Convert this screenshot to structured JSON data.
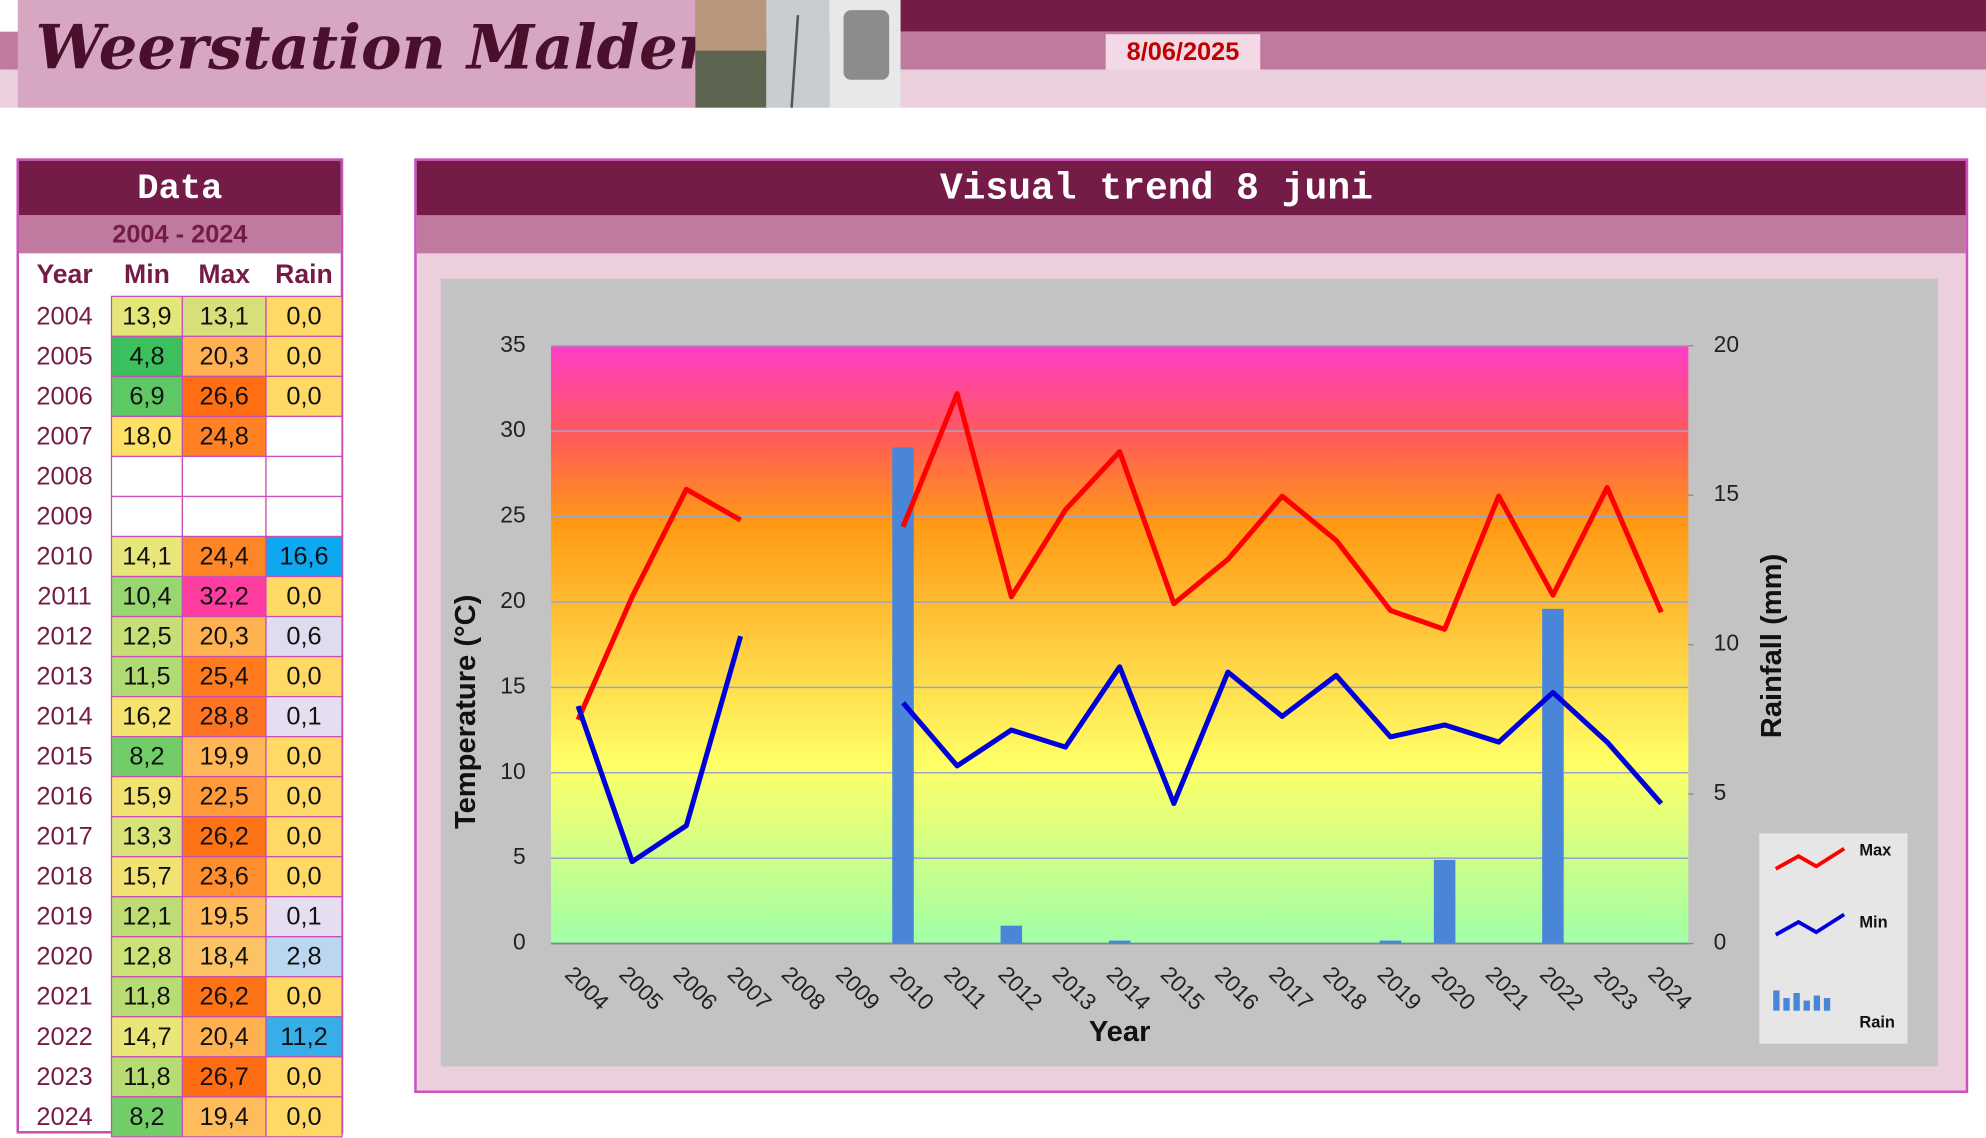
{
  "header": {
    "title": "Weerstation Malderen",
    "date": "8/06/2025"
  },
  "table": {
    "title": "Data",
    "period": "2004 - 2024",
    "columns": [
      "Year",
      "Min",
      "Max",
      "Rain"
    ],
    "rows": [
      [
        "2004",
        "13,9",
        "13,1",
        "0,0"
      ],
      [
        "2005",
        "4,8",
        "20,3",
        "0,0"
      ],
      [
        "2006",
        "6,9",
        "26,6",
        "0,0"
      ],
      [
        "2007",
        "18,0",
        "24,8",
        null
      ],
      [
        "2008",
        null,
        null,
        null
      ],
      [
        "2009",
        null,
        null,
        null
      ],
      [
        "2010",
        "14,1",
        "24,4",
        "16,6"
      ],
      [
        "2011",
        "10,4",
        "32,2",
        "0,0"
      ],
      [
        "2012",
        "12,5",
        "20,3",
        "0,6"
      ],
      [
        "2013",
        "11,5",
        "25,4",
        "0,0"
      ],
      [
        "2014",
        "16,2",
        "28,8",
        "0,1"
      ],
      [
        "2015",
        "8,2",
        "19,9",
        "0,0"
      ],
      [
        "2016",
        "15,9",
        "22,5",
        "0,0"
      ],
      [
        "2017",
        "13,3",
        "26,2",
        "0,0"
      ],
      [
        "2018",
        "15,7",
        "23,6",
        "0,0"
      ],
      [
        "2019",
        "12,1",
        "19,5",
        "0,1"
      ],
      [
        "2020",
        "12,8",
        "18,4",
        "2,8"
      ],
      [
        "2021",
        "11,8",
        "26,2",
        "0,0"
      ],
      [
        "2022",
        "14,7",
        "20,4",
        "11,2"
      ],
      [
        "2023",
        "11,8",
        "26,7",
        "0,0"
      ],
      [
        "2024",
        "8,2",
        "19,4",
        "0,0"
      ]
    ]
  },
  "chart_data": {
    "type": "combo",
    "title": "Visual trend 8 juni",
    "x_label": "Year",
    "y_label": "Temperature (°C)",
    "y2_label": "Rainfall (mm)",
    "categories": [
      "2004",
      "2005",
      "2006",
      "2007",
      "2008",
      "2009",
      "2010",
      "2011",
      "2012",
      "2013",
      "2014",
      "2015",
      "2016",
      "2017",
      "2018",
      "2019",
      "2020",
      "2021",
      "2022",
      "2023",
      "2024"
    ],
    "series": [
      {
        "name": "Max",
        "type": "line",
        "color": "#ff0000",
        "values": [
          13.1,
          20.3,
          26.6,
          24.8,
          null,
          null,
          24.4,
          32.2,
          20.3,
          25.4,
          28.8,
          19.9,
          22.5,
          26.2,
          23.6,
          19.5,
          18.4,
          26.2,
          20.4,
          26.7,
          19.4
        ]
      },
      {
        "name": "Min",
        "type": "line",
        "color": "#0000dd",
        "values": [
          13.9,
          4.8,
          6.9,
          18.0,
          null,
          null,
          14.1,
          10.4,
          12.5,
          11.5,
          16.2,
          8.2,
          15.9,
          13.3,
          15.7,
          12.1,
          12.8,
          11.8,
          14.7,
          11.8,
          8.2
        ]
      },
      {
        "name": "Rain",
        "type": "bar",
        "axis": "y2",
        "color": "#4a86d8",
        "values": [
          0,
          0,
          0,
          null,
          null,
          null,
          16.6,
          0,
          0.6,
          0,
          0.1,
          0,
          0,
          0,
          0,
          0.1,
          2.8,
          0,
          11.2,
          0,
          0
        ]
      }
    ],
    "ylim": [
      0,
      35
    ],
    "yticks": [
      0,
      5,
      10,
      15,
      20,
      25,
      30,
      35
    ],
    "y2lim": [
      0,
      20
    ],
    "y2ticks": [
      0,
      5,
      10,
      15,
      20
    ],
    "grid": true,
    "legend": "right"
  }
}
